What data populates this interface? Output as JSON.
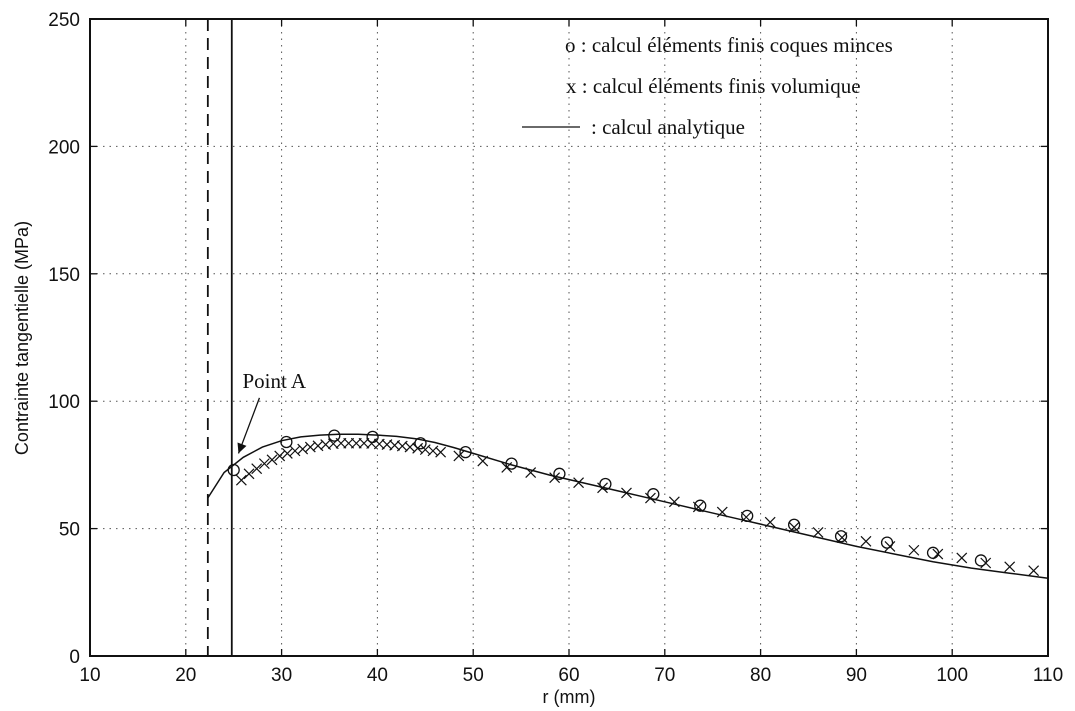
{
  "chart_data": {
    "type": "line",
    "title": "",
    "xlabel": "r (mm)",
    "ylabel": "Contrainte tangentielle (MPa)",
    "xlim": [
      10,
      110
    ],
    "ylim": [
      0,
      250
    ],
    "xticks": [
      10,
      20,
      30,
      40,
      50,
      60,
      70,
      80,
      90,
      100,
      110
    ],
    "yticks": [
      0,
      50,
      100,
      150,
      200,
      250
    ],
    "grid": true,
    "legend_position": "top-right",
    "legend": [
      {
        "symbol": "o",
        "text": "o : calcul éléments finis coques minces"
      },
      {
        "symbol": "x",
        "text": "x : calcul éléments finis volumique"
      },
      {
        "symbol": "line",
        "text": ": calcul analytique"
      }
    ],
    "vertical_lines": [
      {
        "x": 22.3,
        "style": "dashed"
      },
      {
        "x": 24.8,
        "style": "solid"
      }
    ],
    "annotation": {
      "text": "Point A",
      "x": 25.5,
      "y": 79.5,
      "text_x": 28,
      "text_y": 106
    },
    "series": [
      {
        "marker": "line",
        "x": [
          22.3,
          24,
          26,
          28,
          30,
          32,
          34,
          36,
          38,
          40,
          42,
          44,
          46,
          48,
          50,
          54,
          58,
          62,
          66,
          70,
          74,
          78,
          82,
          86,
          90,
          94,
          98,
          102,
          106,
          110
        ],
        "y": [
          62,
          72,
          78,
          82,
          84.5,
          86,
          86.7,
          87,
          87,
          86.7,
          86.2,
          85.3,
          83.8,
          81.8,
          79.5,
          75,
          71,
          67.5,
          64,
          60.5,
          57,
          53.5,
          50,
          46.5,
          43,
          40,
          37,
          34.5,
          32.5,
          30.5
        ]
      },
      {
        "marker": "o",
        "x": [
          25,
          30.5,
          35.5,
          39.5,
          44.5,
          49.2,
          54,
          59,
          63.8,
          68.8,
          73.7,
          78.6,
          83.5,
          88.4,
          93.2,
          98,
          103
        ],
        "y": [
          73,
          84,
          86.5,
          86,
          83.5,
          80,
          75.5,
          71.5,
          67.5,
          63.5,
          59,
          55,
          51.5,
          47,
          44.5,
          40.5,
          37.5
        ]
      },
      {
        "marker": "x",
        "x": [
          25.8,
          26.6,
          27.4,
          28.2,
          29,
          29.8,
          30.6,
          31.4,
          32.2,
          33,
          33.8,
          34.6,
          35.4,
          36.2,
          37,
          37.8,
          38.6,
          39.4,
          40.2,
          41,
          41.8,
          42.6,
          43.4,
          44.2,
          45,
          45.8,
          46.6,
          48.5,
          51,
          53.5,
          56,
          58.5,
          61,
          63.5,
          66,
          68.5,
          71,
          73.5,
          76,
          78.5,
          81,
          83.5,
          86,
          88.5,
          91,
          93.5,
          96,
          98.5,
          101,
          103.5,
          106,
          108.5
        ],
        "y": [
          69,
          71.5,
          73.5,
          75.5,
          77,
          78.5,
          79.5,
          80.5,
          81.2,
          82,
          82.5,
          83,
          83.3,
          83.5,
          83.5,
          83.5,
          83.5,
          83.4,
          83.2,
          83,
          82.7,
          82.4,
          82,
          81.5,
          81,
          80.5,
          80,
          78.5,
          76.5,
          74,
          72,
          70,
          68,
          66,
          64,
          62,
          60.5,
          58.5,
          56.5,
          54.5,
          52.5,
          50.5,
          48.5,
          46.5,
          45,
          43,
          41.5,
          40,
          38.5,
          36.5,
          35,
          33.5
        ]
      }
    ]
  }
}
